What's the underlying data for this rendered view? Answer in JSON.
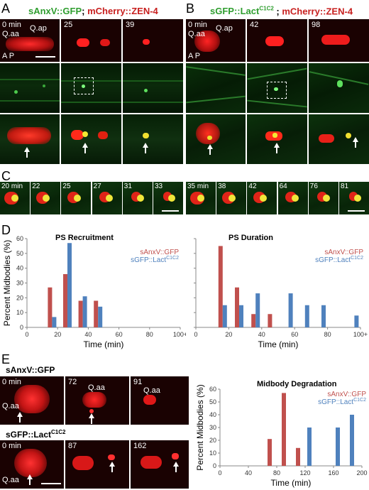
{
  "panels": {
    "A": {
      "letter": "A",
      "title_green": "sAnxV::GFP",
      "title_sep": "; ",
      "title_red": "mCherry::ZEN-4",
      "times": [
        "0 min",
        "25",
        "39"
      ],
      "cell_labels": [
        "Q.aa",
        "Q.ap"
      ],
      "axis": "A P"
    },
    "B": {
      "letter": "B",
      "title_green": "sGFP::Lact",
      "title_sup": "C1C2",
      "title_sep": " ; ",
      "title_red": "mCherry::ZEN-4",
      "times": [
        "0 min",
        "42",
        "98"
      ],
      "cell_labels": [
        "Q.aa",
        "Q.ap"
      ],
      "axis": "A P"
    },
    "C": {
      "letter": "C",
      "times_left": [
        "20 min",
        "22",
        "25",
        "27",
        "31",
        "33"
      ],
      "times_right": [
        "35 min",
        "38",
        "42",
        "64",
        "76",
        "81"
      ]
    },
    "D": {
      "letter": "D"
    },
    "E": {
      "letter": "E",
      "row1_title": "sAnxV::GFP",
      "row1_times": [
        "0 min",
        "72",
        "91"
      ],
      "row1_labels": [
        "Q.aa",
        "Q.aa",
        "Q.aa"
      ],
      "row2_title": "sGFP::Lact",
      "row2_sup": "C1C2",
      "row2_times": [
        "0 min",
        "87",
        "162"
      ],
      "row2_labels": [
        "Q.aa"
      ]
    }
  },
  "colors": {
    "anxv": "#c0504d",
    "lact": "#4f81bd"
  },
  "chart_data": [
    {
      "type": "bar",
      "title": "PS Recruitment",
      "xlabel": "Time (min)",
      "ylabel": "Percent Midbodies (%)",
      "xticks": [
        "0",
        "20",
        "40",
        "60",
        "80",
        "100+"
      ],
      "yticks": [
        "0",
        "10",
        "20",
        "30",
        "40",
        "50",
        "60"
      ],
      "xlim": [
        0,
        100
      ],
      "ylim": [
        0,
        60
      ],
      "series": [
        {
          "name": "sAnxV::GFP",
          "color": "#c0504d",
          "x": [
            15,
            25,
            35,
            45
          ],
          "values": [
            27,
            36,
            18,
            18
          ]
        },
        {
          "name": "sGFP::Lact",
          "name_sup": "C1C2",
          "color": "#4f81bd",
          "x": [
            15,
            25,
            35,
            45
          ],
          "values": [
            7,
            57,
            21,
            14
          ]
        }
      ]
    },
    {
      "type": "bar",
      "title": "PS Duration",
      "xlabel": "Time (min)",
      "ylabel": "",
      "xticks": [
        "0",
        "20",
        "40",
        "60",
        "80",
        "100+"
      ],
      "yticks": [],
      "xlim": [
        0,
        100
      ],
      "ylim": [
        0,
        60
      ],
      "series": [
        {
          "name": "sAnxV::GFP",
          "color": "#c0504d",
          "x": [
            15,
            25,
            35,
            45
          ],
          "values": [
            55,
            27,
            9,
            9
          ]
        },
        {
          "name": "sGFP::Lact",
          "name_sup": "C1C2",
          "color": "#4f81bd",
          "x": [
            15,
            25,
            35,
            55,
            65,
            75,
            95
          ],
          "values": [
            15,
            15,
            23,
            23,
            15,
            15,
            8
          ]
        }
      ]
    },
    {
      "type": "bar",
      "title": "Midbody Degradation",
      "xlabel": "Time (min)",
      "ylabel": "Percent Midbodies (%)",
      "xticks": [
        "0",
        "40",
        "80",
        "120",
        "160",
        "200"
      ],
      "yticks": [
        "0",
        "10",
        "20",
        "30",
        "40",
        "50",
        "60"
      ],
      "xlim": [
        0,
        200
      ],
      "ylim": [
        0,
        60
      ],
      "series": [
        {
          "name": "sAnxV::GFP",
          "color": "#c0504d",
          "x": [
            70,
            90,
            110
          ],
          "values": [
            21,
            57,
            14
          ]
        },
        {
          "name": "sGFP::Lact",
          "name_sup": "C1C2",
          "color": "#4f81bd",
          "x": [
            120,
            160,
            180
          ],
          "values": [
            30,
            30,
            40
          ]
        }
      ]
    }
  ]
}
